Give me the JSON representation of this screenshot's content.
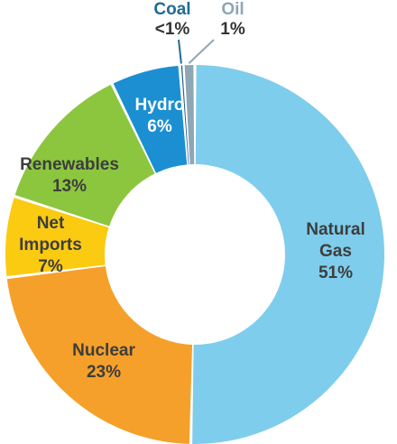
{
  "chart_data": {
    "type": "pie",
    "donut": true,
    "title": "",
    "slices": [
      {
        "name": "Natural Gas",
        "value": 51,
        "label_lines": [
          "Natural",
          "Gas",
          "51%"
        ],
        "color": "#7ECDEC",
        "label_color": "#3d3d3d"
      },
      {
        "name": "Nuclear",
        "value": 23,
        "label_lines": [
          "Nuclear",
          "23%"
        ],
        "color": "#F5A02A",
        "label_color": "#3d3d3d"
      },
      {
        "name": "Net Imports",
        "value": 7,
        "label_lines": [
          "Net",
          "Imports",
          "7%"
        ],
        "color": "#FBCB12",
        "label_color": "#3d3d3d"
      },
      {
        "name": "Renewables",
        "value": 13,
        "label_lines": [
          "Renewables",
          "13%"
        ],
        "color": "#8CC63F",
        "label_color": "#3d3d3d"
      },
      {
        "name": "Hydro",
        "value": 6,
        "label_lines": [
          "Hydro",
          "6%"
        ],
        "color": "#1B8FD2",
        "label_color": "#ffffff"
      },
      {
        "name": "Coal",
        "value": 0.3,
        "label_lines": [
          "Coal",
          "<1%"
        ],
        "color": "#1f5f86",
        "label_color": "#1f6b96",
        "value_color": "#333333"
      },
      {
        "name": "Oil",
        "value": 1,
        "label_lines": [
          "Oil",
          "1%"
        ],
        "color": "#8FA6B5",
        "label_color": "#8FA6B5",
        "value_color": "#333333"
      }
    ]
  }
}
